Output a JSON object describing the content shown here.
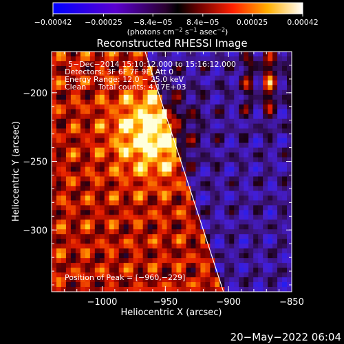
{
  "chart_data": {
    "type": "heatmap",
    "title": "Reconstructed RHESSI Image",
    "xlabel": "Heliocentric X (arcsec)",
    "ylabel": "Heliocentric Y (arcsec)",
    "xlim": [
      -1040,
      -850
    ],
    "ylim": [
      -345,
      -170
    ],
    "xticks": [
      -1000,
      -950,
      -900,
      -850
    ],
    "yticks": [
      -200,
      -250,
      -300
    ],
    "xtick_labels": [
      "−1000",
      "−950",
      "−900",
      "−850"
    ],
    "ytick_labels": [
      "−200",
      "−250",
      "−300"
    ],
    "colorbar": {
      "range": [
        -0.00042,
        0.00042
      ],
      "tick_labels": [
        "−0.00042",
        "−0.00025",
        "−8.4e−05",
        "8.4e−05",
        "0.00025",
        "0.00042"
      ],
      "tick_values": [
        -0.00042,
        -0.00025,
        -8.4e-05,
        8.4e-05,
        0.00025,
        0.00042
      ],
      "units_prefix": "(photons cm",
      "units_exp1": "−2",
      "units_mid": " s",
      "units_exp2": "−1",
      "units_mid2": " asec",
      "units_exp3": "−2",
      "units_suffix": ")"
    },
    "annotations": [
      "5−Dec−2014 15:10:12.000 to 15:16:12.000",
      "Detectors: 3F 6F 7F 9F, Att 0",
      "Energy Range: 12.0 − 25.0 keV",
      "Clean     Total counts: 4.17E+03"
    ],
    "peak_label": "Position of Peak = [−960,−229]",
    "peak": [
      -960,
      -229
    ],
    "limb_line": [
      [
        -966,
        -170
      ],
      [
        -904,
        -345
      ]
    ],
    "grid": false
  },
  "footer": {
    "date": "20−May−2022 06:04"
  }
}
